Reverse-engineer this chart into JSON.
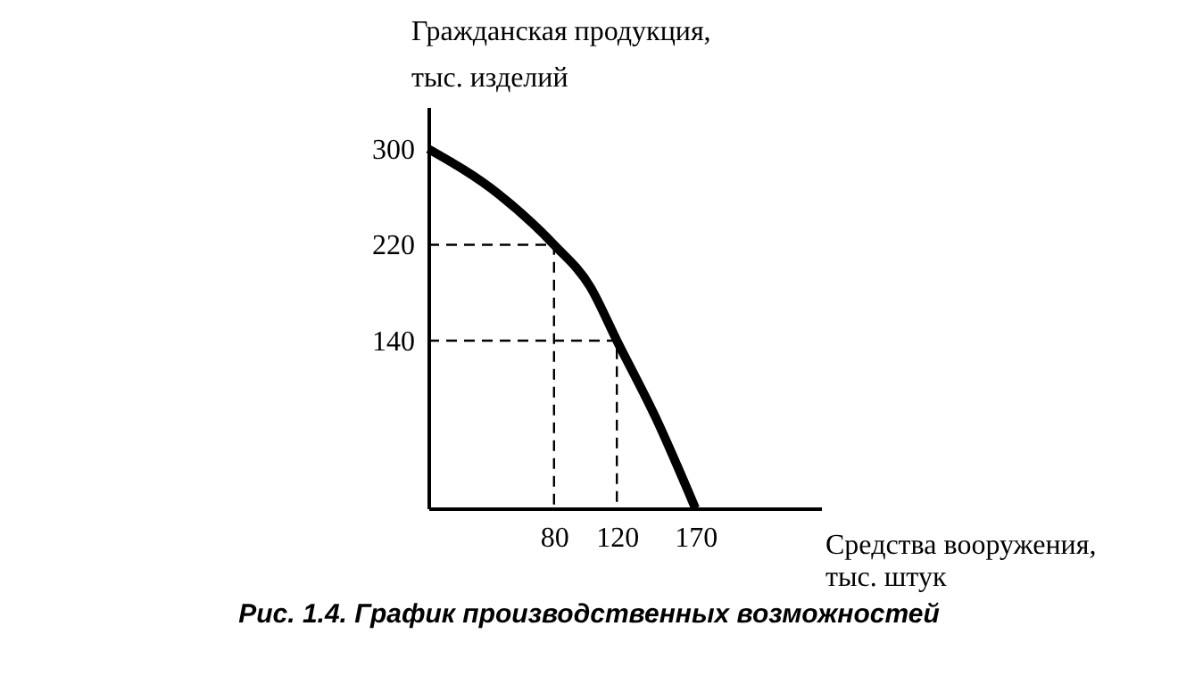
{
  "chart_data": {
    "type": "line",
    "ylabel": "Гражданская продукция,\nтыс. изделий",
    "xlabel": "Средства вооружения,\nтыс. штук",
    "annotations": [
      "Рис. 1.4. График производственных возможностей"
    ],
    "xlim": [
      0,
      250
    ],
    "ylim": [
      0,
      335
    ],
    "xticks": [
      80,
      120,
      170
    ],
    "yticks": [
      140,
      220,
      300
    ],
    "series": [
      {
        "color": "#000000",
        "line_style": "solid",
        "x": [
          0,
          45,
          80,
          103,
          120,
          145,
          170
        ],
        "values": [
          300,
          262,
          220,
          185,
          140,
          75,
          0
        ]
      },
      {
        "type": "line",
        "color": "#000000",
        "line_style": "dashed",
        "x": [
          0,
          80,
          80
        ],
        "values": [
          220,
          220,
          0
        ]
      },
      {
        "type": "line",
        "color": "#000000",
        "line_style": "dashed",
        "x": [
          0,
          120,
          120
        ],
        "values": [
          140,
          140,
          0
        ]
      }
    ]
  }
}
